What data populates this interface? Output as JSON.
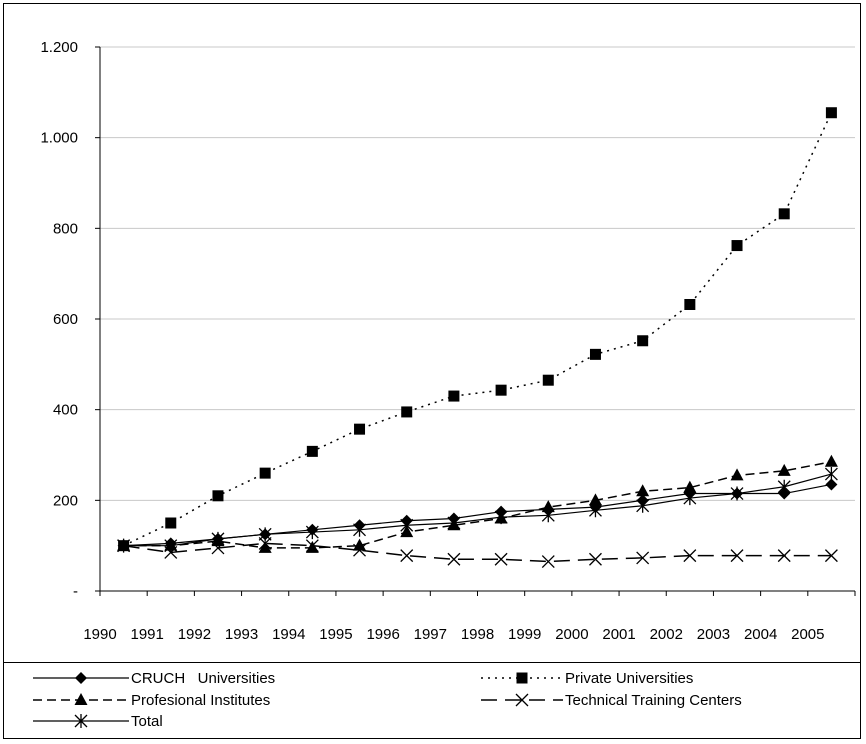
{
  "chart_data": {
    "type": "line",
    "title": "",
    "xlabel": "",
    "ylabel": "",
    "ylim": [
      0,
      1200
    ],
    "yticks": [
      {
        "value": 0,
        "label": "-"
      },
      {
        "value": 200,
        "label": "200"
      },
      {
        "value": 400,
        "label": "400"
      },
      {
        "value": 600,
        "label": "600"
      },
      {
        "value": 800,
        "label": "800"
      },
      {
        "value": 1000,
        "label": "1.000"
      },
      {
        "value": 1200,
        "label": "1.200"
      }
    ],
    "x_tick_labels": [
      "1990",
      "1991",
      "1992",
      "1993",
      "1994",
      "1995",
      "1996",
      "1997",
      "1998",
      "1999",
      "2000",
      "2001",
      "2002",
      "2003",
      "2004",
      "2005"
    ],
    "x": [
      "1990",
      "1991",
      "1992",
      "1993",
      "1994",
      "1995",
      "1996",
      "1997",
      "1998",
      "1999",
      "2000",
      "2001",
      "2002",
      "2003",
      "2004",
      "2005"
    ],
    "grid": "horizontal",
    "legend_position": "bottom",
    "series": [
      {
        "name": "CRUCH   Universities",
        "style": "solid",
        "marker": "diamond",
        "values": [
          100,
          105,
          115,
          125,
          135,
          145,
          155,
          160,
          175,
          180,
          185,
          200,
          215,
          215,
          215,
          235
        ]
      },
      {
        "name": "Private Universities",
        "style": "dotted",
        "marker": "square",
        "values": [
          100,
          150,
          210,
          260,
          308,
          357,
          395,
          430,
          443,
          465,
          522,
          552,
          632,
          762,
          832,
          1055
        ]
      },
      {
        "name": "Profesional Institutes",
        "style": "dashed",
        "marker": "triangle",
        "values": [
          100,
          100,
          110,
          95,
          95,
          100,
          130,
          145,
          160,
          185,
          200,
          220,
          228,
          255,
          265,
          285
        ]
      },
      {
        "name": "Technical Training Centers",
        "style": "longdash",
        "marker": "x",
        "values": [
          100,
          85,
          95,
          105,
          100,
          90,
          78,
          70,
          70,
          65,
          70,
          73,
          78,
          78,
          78,
          78
        ]
      },
      {
        "name": "Total",
        "style": "solid",
        "marker": "star",
        "values": [
          100,
          100,
          115,
          125,
          130,
          135,
          145,
          150,
          163,
          167,
          178,
          188,
          205,
          215,
          230,
          258
        ]
      }
    ]
  }
}
